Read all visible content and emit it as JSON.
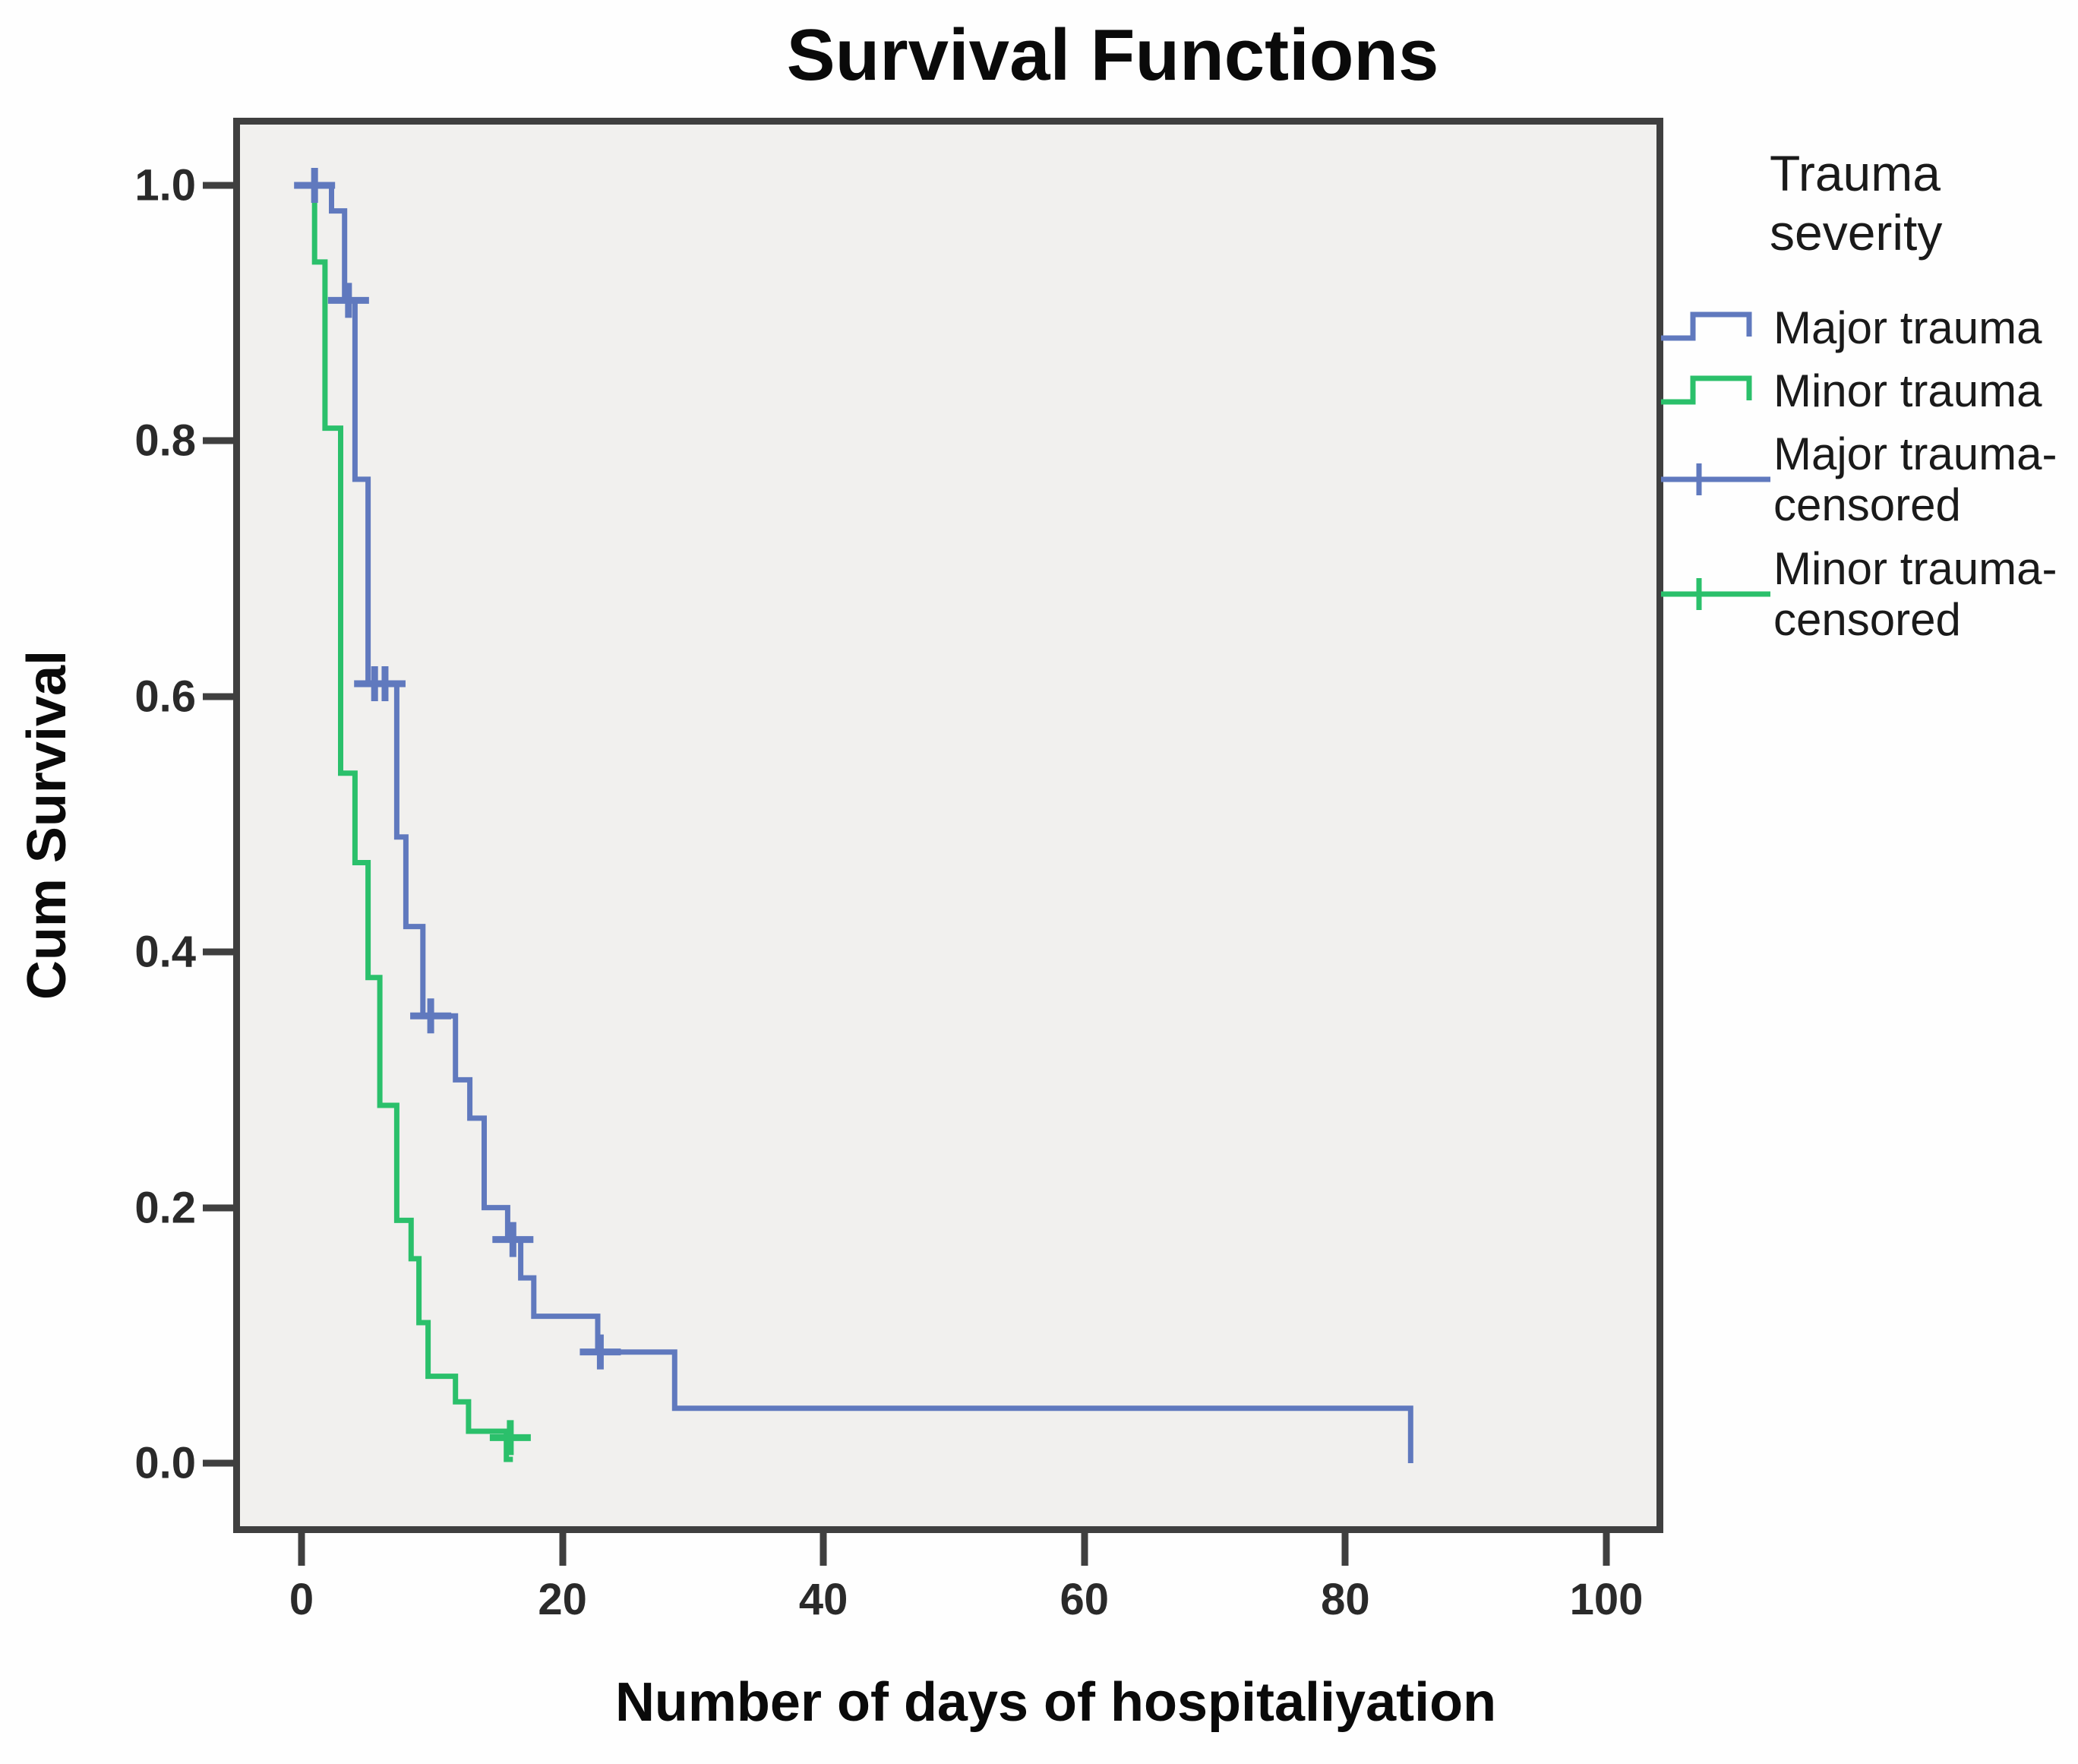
{
  "chart_data": {
    "type": "line",
    "subtype": "kaplan-meier-step",
    "title": "Survival Functions",
    "xlabel": "Number of days of hospitaliyation",
    "ylabel": "Cum Survival",
    "x_ticks": [
      "0",
      "20",
      "40",
      "60",
      "80",
      "100"
    ],
    "x_tick_values": [
      0,
      20,
      40,
      60,
      80,
      100
    ],
    "y_ticks": [
      "1.0",
      "0.8",
      "0.6",
      "0.4",
      "0.2",
      "0.0"
    ],
    "y_tick_values": [
      1.0,
      0.8,
      0.6,
      0.4,
      0.2,
      0.0
    ],
    "xlim": [
      -5.2,
      104.4
    ],
    "ylim": [
      -0.055,
      1.053
    ],
    "grid": false,
    "legend_position": "right",
    "legend_title": "Trauma severity",
    "series": [
      {
        "name": "Minor trauma",
        "color": "#2bc06b",
        "steps": [
          [
            0.6,
            1.0
          ],
          [
            1.0,
            0.94
          ],
          [
            1.8,
            0.81
          ],
          [
            3.0,
            0.54
          ],
          [
            4.1,
            0.47
          ],
          [
            5.1,
            0.38
          ],
          [
            6.0,
            0.28
          ],
          [
            7.3,
            0.19
          ],
          [
            8.4,
            0.16
          ],
          [
            9.0,
            0.11
          ],
          [
            9.7,
            0.068
          ],
          [
            11.8,
            0.048
          ],
          [
            12.8,
            0.025
          ],
          [
            15.7,
            0.003
          ]
        ],
        "end_day": 16.2,
        "censored": [
          [
            16.0,
            0.02
          ]
        ]
      },
      {
        "name": "Major trauma",
        "color": "#6079be",
        "steps": [
          [
            -0.4,
            1.0
          ],
          [
            2.3,
            0.98
          ],
          [
            3.3,
            0.91
          ],
          [
            4.1,
            0.77
          ],
          [
            5.1,
            0.61
          ],
          [
            7.3,
            0.49
          ],
          [
            8.0,
            0.42
          ],
          [
            9.3,
            0.35
          ],
          [
            11.8,
            0.3
          ],
          [
            12.9,
            0.27
          ],
          [
            14.0,
            0.2
          ],
          [
            15.8,
            0.175
          ],
          [
            16.8,
            0.145
          ],
          [
            17.8,
            0.115
          ],
          [
            22.7,
            0.087
          ],
          [
            28.6,
            0.043
          ],
          [
            85.0,
            0.0
          ]
        ],
        "end_day": 85.0,
        "censored": [
          [
            1.0,
            1.0
          ],
          [
            3.6,
            0.91
          ],
          [
            5.6,
            0.61
          ],
          [
            6.4,
            0.61
          ],
          [
            9.9,
            0.35
          ],
          [
            16.2,
            0.175
          ],
          [
            22.9,
            0.087
          ]
        ]
      }
    ],
    "legend_entries": [
      {
        "label": "Major trauma",
        "kind": "step",
        "color": "#6079be"
      },
      {
        "label": "Minor trauma",
        "kind": "step",
        "color": "#2bc06b"
      },
      {
        "label": "Major trauma-censored",
        "kind": "censor",
        "color": "#6079be"
      },
      {
        "label": "Minor trauma-censored",
        "kind": "censor",
        "color": "#2bc06b"
      }
    ]
  },
  "style": {
    "plot_background": "#f1f0ee",
    "frame_color": "#3f3f3f",
    "text_color": "#121212"
  }
}
